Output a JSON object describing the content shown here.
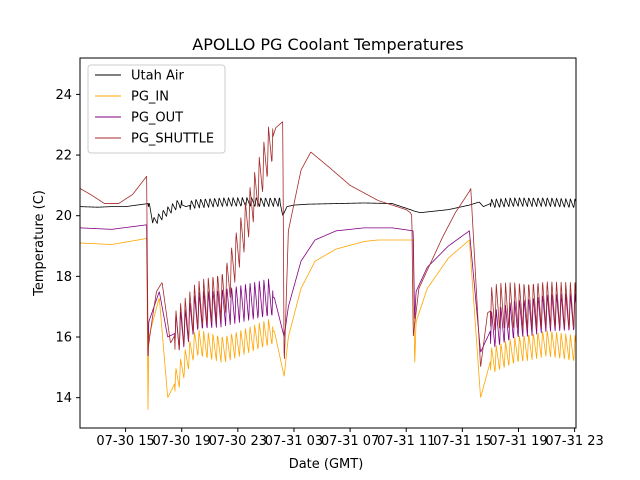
{
  "chart_data": {
    "type": "line",
    "title": "APOLLO PG Coolant Temperatures",
    "xlabel": "Date (GMT)",
    "ylabel": "Temperature (C)",
    "xlim": [
      11.75,
      47.1
    ],
    "ylim": [
      13.0,
      25.2
    ],
    "grid": false,
    "legend_position": "top-left",
    "xticks": [
      {
        "value": 15,
        "label": "07-30 15"
      },
      {
        "value": 19,
        "label": "07-30 19"
      },
      {
        "value": 23,
        "label": "07-30 23"
      },
      {
        "value": 27,
        "label": "07-31 03"
      },
      {
        "value": 31,
        "label": "07-31 07"
      },
      {
        "value": 35,
        "label": "07-31 11"
      },
      {
        "value": 39,
        "label": "07-31 15"
      },
      {
        "value": 43,
        "label": "07-31 19"
      },
      {
        "value": 47,
        "label": "07-31 23"
      }
    ],
    "yticks": [
      {
        "value": 14,
        "label": "14"
      },
      {
        "value": 16,
        "label": "16"
      },
      {
        "value": 18,
        "label": "18"
      },
      {
        "value": 20,
        "label": "20"
      },
      {
        "value": 22,
        "label": "22"
      },
      {
        "value": 24,
        "label": "24"
      }
    ],
    "series": [
      {
        "name": "Utah Air",
        "color": "#000000",
        "x": [
          11.75,
          13,
          14,
          15,
          16.6,
          17,
          18,
          18.8,
          19.3,
          20,
          22,
          24,
          26,
          26.2,
          26.5,
          27,
          28,
          30,
          32,
          34,
          35.3,
          35.6,
          36,
          38,
          39.5,
          40.2,
          40.5,
          41,
          43,
          45,
          47.1
        ],
        "values": [
          20.3,
          20.28,
          20.3,
          20.3,
          20.4,
          19.8,
          20.15,
          20.4,
          20.3,
          20.4,
          20.45,
          20.45,
          20.45,
          20.0,
          20.3,
          20.35,
          20.38,
          20.4,
          20.42,
          20.4,
          20.2,
          20.15,
          20.1,
          20.2,
          20.35,
          20.45,
          20.3,
          20.4,
          20.45,
          20.45,
          20.4
        ],
        "oscillation": {
          "amplitude": 0.3,
          "x_ranges": [
            [
              16.6,
              19
            ],
            [
              19.6,
              26
            ],
            [
              41.0,
              47.1
            ]
          ]
        }
      },
      {
        "name": "PG_IN",
        "color": "#ffa500",
        "x": [
          11.75,
          14,
          16.5,
          16.6,
          16.65,
          17.4,
          18,
          19.3,
          20,
          22,
          25.6,
          26.3,
          26.6,
          27.5,
          28.5,
          30,
          32,
          33,
          34,
          35.5,
          35.6,
          35.7,
          36.5,
          38,
          39.5,
          40.3,
          41,
          43,
          45,
          47.1
        ],
        "values": [
          19.1,
          19.05,
          19.25,
          13.5,
          16.0,
          17.3,
          14.0,
          15.2,
          15.8,
          15.6,
          16.2,
          14.7,
          16.0,
          17.6,
          18.5,
          18.9,
          19.15,
          19.2,
          19.2,
          19.2,
          15.0,
          16.5,
          17.6,
          18.6,
          19.2,
          14.0,
          15.2,
          15.6,
          15.8,
          15.6
        ],
        "oscillation": {
          "amplitude": 0.9,
          "x_ranges": [
            [
              18.5,
              25.5
            ],
            [
              41.0,
              47.1
            ]
          ]
        }
      },
      {
        "name": "PG_OUT",
        "color": "#800080",
        "x": [
          11.75,
          14,
          16.5,
          16.6,
          16.65,
          17.4,
          18,
          19.3,
          20,
          22,
          25.6,
          26.3,
          26.6,
          27.5,
          28.5,
          30,
          32,
          33,
          34,
          35.5,
          35.6,
          35.7,
          36.5,
          38,
          39.5,
          40.3,
          41,
          43,
          45,
          47.1
        ],
        "values": [
          19.6,
          19.55,
          19.7,
          15.3,
          16.5,
          17.5,
          16.0,
          16.3,
          16.8,
          17.0,
          17.3,
          16.0,
          17.0,
          18.5,
          19.2,
          19.5,
          19.6,
          19.6,
          19.6,
          19.5,
          16.5,
          17.5,
          18.3,
          19.0,
          19.5,
          15.5,
          16.2,
          16.6,
          16.8,
          16.8
        ],
        "oscillation": {
          "amplitude": 1.3,
          "x_ranges": [
            [
              18.5,
              25.5
            ],
            [
              41.0,
              47.1
            ]
          ]
        }
      },
      {
        "name": "PG_SHUTTLE",
        "color": "#a52a2a",
        "x": [
          11.75,
          12.5,
          13.5,
          14.5,
          15.5,
          16.5,
          16.6,
          16.9,
          17.2,
          17.6,
          18.2,
          18.8,
          19.4,
          20,
          22,
          25.5,
          25.7,
          26.2,
          26.3,
          26.6,
          27.5,
          28.2,
          29.5,
          31,
          33,
          35.0,
          35.3,
          35.4,
          35.5,
          35.9,
          36.7,
          37.6,
          38.5,
          39.5,
          39.6,
          40.3,
          40.8,
          41.5,
          43,
          45,
          47.1
        ],
        "values": [
          20.9,
          20.7,
          20.4,
          20.4,
          20.7,
          21.3,
          15.6,
          16.6,
          17.5,
          17.8,
          15.8,
          16.3,
          16.6,
          17.0,
          17.4,
          22.6,
          22.9,
          23.1,
          15.0,
          19.5,
          21.5,
          22.1,
          21.6,
          21.0,
          20.5,
          20.2,
          20.1,
          20.0,
          16.0,
          17.6,
          18.4,
          19.3,
          20.1,
          20.8,
          20.9,
          15.0,
          16.8,
          17.0,
          17.0,
          17.1,
          17.0
        ],
        "oscillation": {
          "amplitude": 1.6,
          "x_ranges": [
            [
              18.5,
              25.5
            ],
            [
              41.0,
              47.1
            ]
          ]
        }
      }
    ]
  }
}
